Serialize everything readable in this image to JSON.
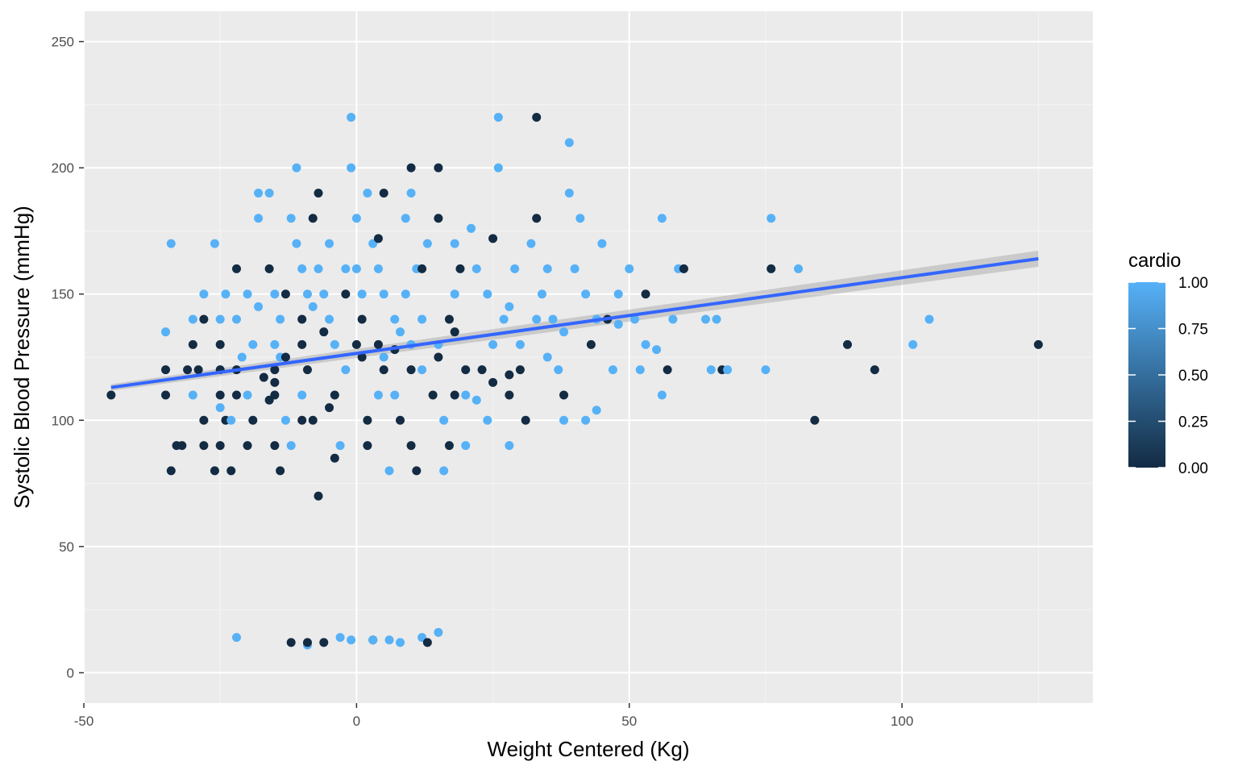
{
  "chart_data": {
    "type": "scatter",
    "title": "",
    "xlabel": "Weight Centered (Kg)",
    "ylabel": "Systolic Blood Pressure (mmHg)",
    "xlim": [
      -50,
      135
    ],
    "ylim": [
      -12,
      262
    ],
    "x_ticks": [
      -50,
      0,
      50,
      100
    ],
    "x_tick_labels": [
      "-50",
      "0",
      "50",
      "100"
    ],
    "y_ticks": [
      0,
      50,
      100,
      150,
      200,
      250
    ],
    "y_tick_labels": [
      "0",
      "50",
      "100",
      "150",
      "200",
      "250"
    ],
    "grid": true,
    "panel_background": "#ebebeb",
    "color_low": "#132b43",
    "color_high": "#56b1f7",
    "legend": {
      "title": "cardio",
      "position": "right",
      "range": [
        0,
        1
      ],
      "ticks": [
        0,
        0.25,
        0.5,
        0.75,
        1
      ],
      "tick_labels": [
        "0.00",
        "0.25",
        "0.50",
        "0.75",
        "1.00"
      ]
    },
    "trend_line": {
      "method": "linear fit with confidence band",
      "color": "#3366ff",
      "band_color": "#999999",
      "x_start": -45,
      "y_start": 113,
      "x_end": 125,
      "y_end": 164,
      "band_half_width_start": 1.3,
      "band_half_width_end": 3.2
    },
    "points": [
      [
        -45,
        110,
        0
      ],
      [
        -35,
        135,
        1
      ],
      [
        -34,
        170,
        1
      ],
      [
        -35,
        120,
        0
      ],
      [
        -35,
        110,
        0
      ],
      [
        -33,
        90,
        0
      ],
      [
        -34,
        80,
        0
      ],
      [
        -32,
        90,
        0
      ],
      [
        -31,
        120,
        0
      ],
      [
        -30,
        140,
        1
      ],
      [
        -30,
        130,
        0
      ],
      [
        -30,
        110,
        1
      ],
      [
        -29,
        120,
        0
      ],
      [
        -28,
        150,
        1
      ],
      [
        -28,
        140,
        0
      ],
      [
        -28,
        100,
        0
      ],
      [
        -28,
        90,
        0
      ],
      [
        -26,
        80,
        0
      ],
      [
        -26,
        170,
        1
      ],
      [
        -25,
        140,
        1
      ],
      [
        -25,
        130,
        0
      ],
      [
        -25,
        120,
        0
      ],
      [
        -25,
        110,
        0
      ],
      [
        -25,
        90,
        0
      ],
      [
        -24,
        150,
        1
      ],
      [
        -24,
        100,
        0
      ],
      [
        -23,
        100,
        1
      ],
      [
        -22,
        14,
        1
      ],
      [
        -23,
        80,
        0
      ],
      [
        -22,
        160,
        0
      ],
      [
        -22,
        140,
        1
      ],
      [
        -22,
        120,
        0
      ],
      [
        -22,
        110,
        0
      ],
      [
        -21,
        125,
        1
      ],
      [
        -20,
        150,
        1
      ],
      [
        -20,
        90,
        0
      ],
      [
        -19,
        130,
        1
      ],
      [
        -19,
        100,
        0
      ],
      [
        -18,
        190,
        1
      ],
      [
        -18,
        180,
        1
      ],
      [
        -18,
        145,
        1
      ],
      [
        -17,
        117,
        0
      ],
      [
        -16,
        108,
        0
      ],
      [
        -16,
        190,
        1
      ],
      [
        -16,
        160,
        0
      ],
      [
        -15,
        150,
        1
      ],
      [
        -15,
        130,
        1
      ],
      [
        -15,
        120,
        0
      ],
      [
        -15,
        110,
        0
      ],
      [
        -15,
        90,
        0
      ],
      [
        -14,
        80,
        0
      ],
      [
        -14,
        140,
        1
      ],
      [
        -14,
        125,
        1
      ],
      [
        -13,
        150,
        0
      ],
      [
        -13,
        125,
        0
      ],
      [
        -13,
        100,
        1
      ],
      [
        -12,
        180,
        1
      ],
      [
        -12,
        90,
        1
      ],
      [
        -12,
        12,
        0
      ],
      [
        -11,
        170,
        1
      ],
      [
        -11,
        200,
        1
      ],
      [
        -10,
        160,
        1
      ],
      [
        -10,
        130,
        0
      ],
      [
        -10,
        140,
        0
      ],
      [
        -10,
        110,
        1
      ],
      [
        -9,
        150,
        1
      ],
      [
        -9,
        120,
        0
      ],
      [
        -8,
        100,
        0
      ],
      [
        -8,
        180,
        0
      ],
      [
        -7,
        190,
        0
      ],
      [
        -7,
        160,
        1
      ],
      [
        -6,
        150,
        1
      ],
      [
        -6,
        135,
        0
      ],
      [
        -6,
        12,
        0
      ],
      [
        -5,
        170,
        1
      ],
      [
        -5,
        140,
        1
      ],
      [
        -4,
        130,
        1
      ],
      [
        -4,
        110,
        0
      ],
      [
        -3,
        90,
        1
      ],
      [
        -3,
        14,
        1
      ],
      [
        -2,
        160,
        1
      ],
      [
        -2,
        150,
        0
      ],
      [
        -2,
        120,
        1
      ],
      [
        -1,
        200,
        1
      ],
      [
        -1,
        220,
        1
      ],
      [
        0,
        180,
        1
      ],
      [
        0,
        160,
        1
      ],
      [
        1,
        150,
        1
      ],
      [
        1,
        140,
        0
      ],
      [
        1,
        125,
        0
      ],
      [
        2,
        190,
        1
      ],
      [
        2,
        100,
        0
      ],
      [
        2,
        90,
        0
      ],
      [
        3,
        170,
        1
      ],
      [
        3,
        13,
        0
      ],
      [
        4,
        172,
        0
      ],
      [
        4,
        160,
        1
      ],
      [
        4,
        130,
        0
      ],
      [
        4,
        110,
        1
      ],
      [
        5,
        190,
        0
      ],
      [
        5,
        150,
        1
      ],
      [
        5,
        120,
        0
      ],
      [
        6,
        80,
        1
      ],
      [
        6,
        13,
        1
      ],
      [
        7,
        140,
        1
      ],
      [
        7,
        128,
        0
      ],
      [
        7,
        110,
        1
      ],
      [
        8,
        100,
        0
      ],
      [
        9,
        150,
        1
      ],
      [
        9,
        180,
        1
      ],
      [
        10,
        190,
        1
      ],
      [
        10,
        200,
        0
      ],
      [
        10,
        130,
        1
      ],
      [
        10,
        90,
        0
      ],
      [
        11,
        160,
        1
      ],
      [
        11,
        80,
        0
      ],
      [
        12,
        140,
        1
      ],
      [
        12,
        120,
        1
      ],
      [
        12,
        14,
        1
      ],
      [
        13,
        12,
        0
      ],
      [
        13,
        170,
        1
      ],
      [
        14,
        110,
        0
      ],
      [
        15,
        200,
        0
      ],
      [
        15,
        180,
        0
      ],
      [
        15,
        130,
        1
      ],
      [
        15,
        16,
        1
      ],
      [
        16,
        80,
        1
      ],
      [
        16,
        100,
        1
      ],
      [
        17,
        90,
        0
      ],
      [
        17,
        140,
        0
      ],
      [
        18,
        150,
        1
      ],
      [
        18,
        170,
        1
      ],
      [
        19,
        160,
        0
      ],
      [
        20,
        110,
        1
      ],
      [
        20,
        90,
        1
      ],
      [
        21,
        176,
        1
      ],
      [
        22,
        160,
        1
      ],
      [
        23,
        120,
        0
      ],
      [
        24,
        150,
        1
      ],
      [
        25,
        172,
        0
      ],
      [
        25,
        130,
        1
      ],
      [
        26,
        220,
        1
      ],
      [
        26,
        200,
        1
      ],
      [
        27,
        140,
        1
      ],
      [
        28,
        90,
        1
      ],
      [
        28,
        110,
        0
      ],
      [
        29,
        160,
        1
      ],
      [
        30,
        130,
        1
      ],
      [
        31,
        100,
        0
      ],
      [
        32,
        170,
        1
      ],
      [
        33,
        180,
        0
      ],
      [
        33,
        220,
        0
      ],
      [
        34,
        150,
        1
      ],
      [
        35,
        160,
        1
      ],
      [
        36,
        140,
        1
      ],
      [
        37,
        120,
        1
      ],
      [
        38,
        110,
        0
      ],
      [
        38,
        100,
        1
      ],
      [
        39,
        210,
        1
      ],
      [
        39,
        190,
        1
      ],
      [
        40,
        160,
        1
      ],
      [
        41,
        180,
        1
      ],
      [
        42,
        150,
        1
      ],
      [
        43,
        130,
        0
      ],
      [
        44,
        104,
        1
      ],
      [
        45,
        170,
        1
      ],
      [
        46,
        140,
        0
      ],
      [
        47,
        120,
        1
      ],
      [
        48,
        150,
        1
      ],
      [
        50,
        160,
        1
      ],
      [
        51,
        140,
        1
      ],
      [
        52,
        120,
        1
      ],
      [
        53,
        130,
        1
      ],
      [
        53,
        150,
        0
      ],
      [
        56,
        180,
        1
      ],
      [
        56,
        110,
        1
      ],
      [
        57,
        120,
        0
      ],
      [
        58,
        140,
        1
      ],
      [
        59,
        160,
        1
      ],
      [
        60,
        160,
        0
      ],
      [
        64,
        140,
        1
      ],
      [
        65,
        120,
        1
      ],
      [
        66,
        140,
        1
      ],
      [
        67,
        120,
        0
      ],
      [
        68,
        120,
        1
      ],
      [
        75,
        120,
        1
      ],
      [
        76,
        180,
        1
      ],
      [
        76,
        160,
        0
      ],
      [
        81,
        160,
        1
      ],
      [
        84,
        100,
        0
      ],
      [
        90,
        130,
        0
      ],
      [
        95,
        120,
        0
      ],
      [
        102,
        130,
        1
      ],
      [
        105,
        140,
        1
      ],
      [
        125,
        130,
        0
      ],
      [
        -20,
        110,
        1
      ],
      [
        -10,
        100,
        0
      ],
      [
        0,
        130,
        0
      ],
      [
        10,
        120,
        0
      ],
      [
        20,
        120,
        0
      ],
      [
        30,
        120,
        0
      ],
      [
        -5,
        105,
        0
      ],
      [
        5,
        125,
        1
      ],
      [
        15,
        125,
        0
      ],
      [
        25,
        115,
        0
      ],
      [
        35,
        125,
        1
      ],
      [
        -25,
        105,
        1
      ],
      [
        -15,
        115,
        0
      ],
      [
        -8,
        145,
        1
      ],
      [
        8,
        135,
        1
      ],
      [
        18,
        135,
        0
      ],
      [
        28,
        145,
        1
      ],
      [
        38,
        135,
        1
      ],
      [
        -4,
        85,
        0
      ],
      [
        -7,
        70,
        0
      ],
      [
        -9,
        11,
        1
      ],
      [
        -9,
        12,
        0
      ],
      [
        8,
        12,
        1
      ],
      [
        3,
        13,
        1
      ],
      [
        -1,
        13,
        1
      ],
      [
        18,
        110,
        0
      ],
      [
        22,
        108,
        1
      ],
      [
        24,
        100,
        1
      ],
      [
        28,
        118,
        0
      ],
      [
        33,
        140,
        1
      ],
      [
        42,
        100,
        1
      ],
      [
        44,
        140,
        1
      ],
      [
        48,
        138,
        1
      ],
      [
        55,
        128,
        1
      ],
      [
        12,
        160,
        0
      ]
    ]
  }
}
